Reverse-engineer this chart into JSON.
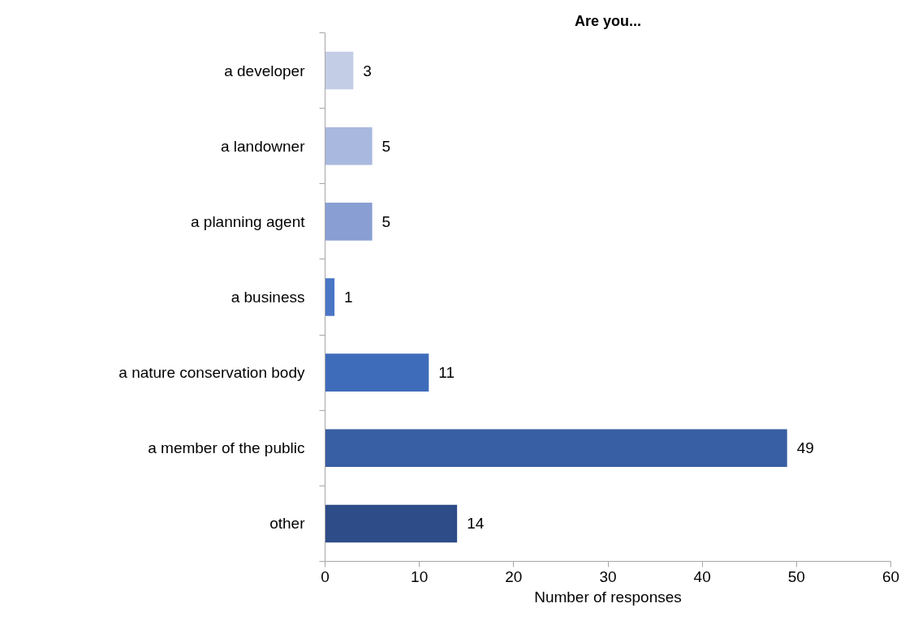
{
  "chart_data": {
    "type": "bar",
    "orientation": "horizontal",
    "title": "Are you...",
    "categories": [
      "a developer",
      "a landowner",
      "a planning agent",
      "a business",
      "a nature conservation body",
      "a member of the public",
      "other"
    ],
    "values": [
      3,
      5,
      5,
      1,
      11,
      49,
      14
    ],
    "colors": [
      "#c4cde6",
      "#a9b8de",
      "#899fd4",
      "#4a76c6",
      "#3f6cba",
      "#385ea3",
      "#2e4c88"
    ],
    "xlabel": "Number of responses",
    "xlim": [
      0,
      60
    ],
    "xticks": [
      0,
      10,
      20,
      30,
      40,
      50,
      60
    ],
    "data_labels": true,
    "grid": false
  }
}
